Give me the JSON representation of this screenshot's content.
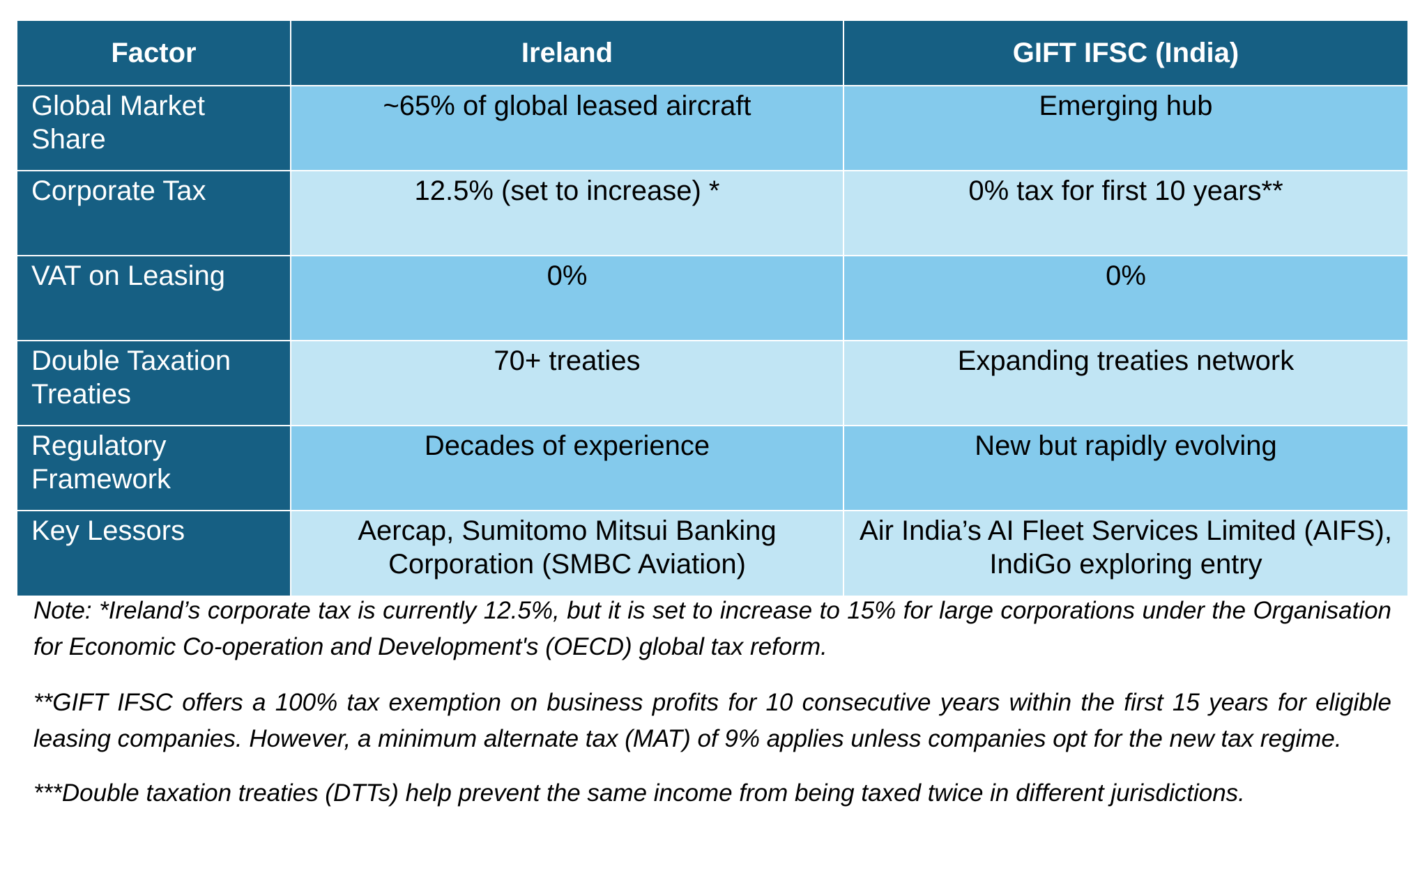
{
  "table": {
    "headers": [
      "Factor",
      "Ireland",
      "GIFT IFSC (India)"
    ],
    "rows": [
      {
        "factor": "Global Market Share",
        "ireland": "~65% of global leased aircraft",
        "gift": "Emerging hub"
      },
      {
        "factor": "Corporate Tax",
        "ireland": "12.5% (set to increase) *",
        "gift": "0% tax for first 10 years**"
      },
      {
        "factor": "VAT on Leasing",
        "ireland": "0%",
        "gift": "0%"
      },
      {
        "factor": "Double Taxation Treaties",
        "ireland": "70+ treaties",
        "gift": "Expanding treaties network"
      },
      {
        "factor": "Regulatory Framework",
        "ireland": "Decades of experience",
        "gift": "New but rapidly evolving"
      },
      {
        "factor": "Key Lessors",
        "ireland": "Aercap, Sumitomo Mitsui Banking Corporation (SMBC Aviation)",
        "gift": "Air India’s AI Fleet Services Limited (AIFS), IndiGo exploring entry"
      }
    ]
  },
  "notes": [
    "Note: *Ireland’s corporate tax is currently 12.5%, but it is set to increase to 15% for large corporations under the Organisation for Economic Co-operation and Development's (OECD) global tax reform.",
    "**GIFT IFSC offers a 100% tax exemption on business profits for 10 consecutive years within the first 15 years for eligible leasing companies. However, a minimum alternate tax (MAT) of 9% applies unless companies opt for the new tax regime.",
    "***Double taxation treaties (DTTs) help prevent the same income from being taxed twice in different jurisdictions."
  ],
  "colors": {
    "header_bg": "#165f83",
    "row_dark": "#84caec",
    "row_light": "#c1e5f4"
  }
}
